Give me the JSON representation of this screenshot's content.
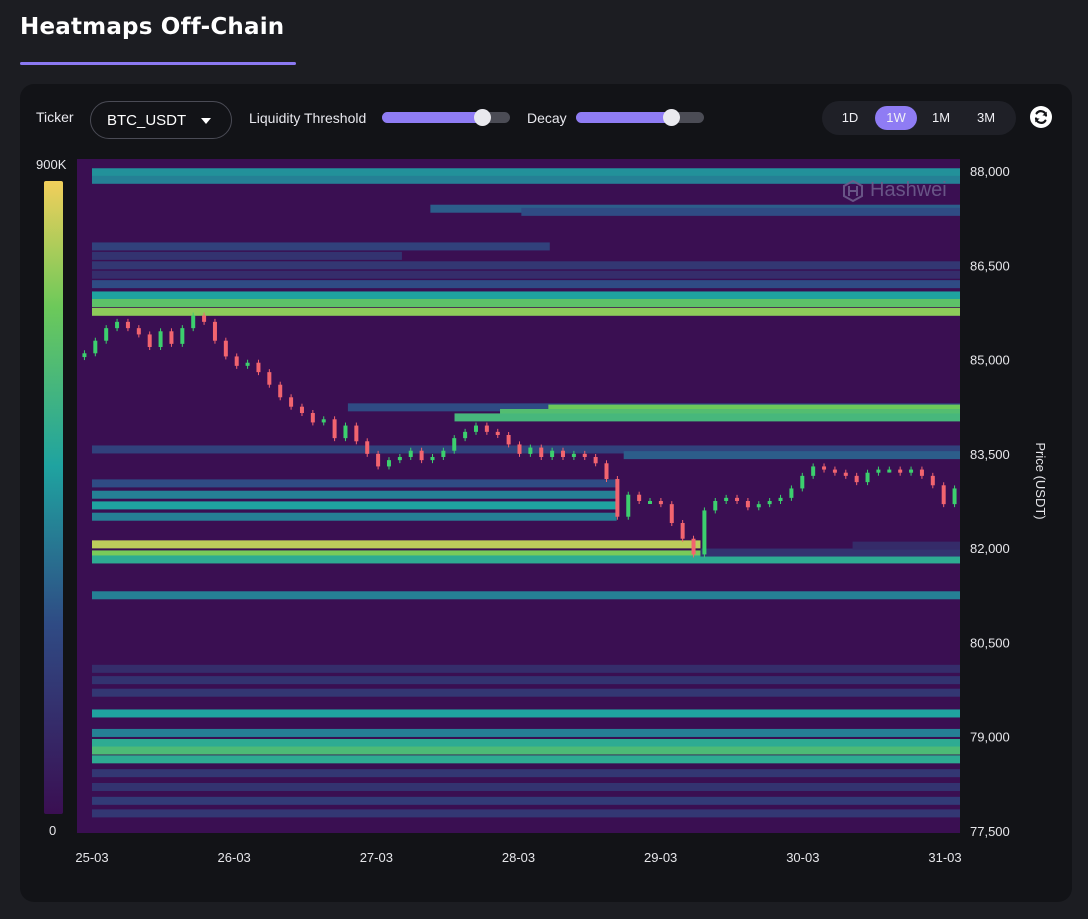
{
  "page": {
    "title": "Heatmaps Off-Chain"
  },
  "controls": {
    "ticker_label": "Ticker",
    "ticker_value": "BTC_USDT",
    "liquidity_label": "Liquidity Threshold",
    "liquidity_level": 0.78,
    "decay_label": "Decay",
    "decay_level": 0.74,
    "ranges": [
      "1D",
      "1W",
      "1M",
      "3M"
    ],
    "active_range": "1W"
  },
  "watermark": "Hashwei",
  "colors": {
    "background": "#1c1d22",
    "panel": "#121317",
    "accent": "#8f7cf4",
    "heat_base": "#3a0f52",
    "candle_up": "#3ccf6e",
    "candle_down": "#f2646f"
  },
  "chart_data": {
    "type": "heatmap",
    "ylabel": "Price (USDT)",
    "y_ticks": [
      "88,000",
      "86,500",
      "85,000",
      "83,500",
      "82,000",
      "80,500",
      "79,000",
      "77,500"
    ],
    "ylim": [
      77500,
      88000
    ],
    "x_ticks": [
      "25-03",
      "26-03",
      "27-03",
      "28-03",
      "29-03",
      "30-03",
      "31-03"
    ],
    "xlim_days": [
      0,
      6
    ],
    "colorbar": {
      "max_label": "900K",
      "min_label": "0"
    },
    "liquidity_bands": [
      {
        "price": 87980,
        "start": 0,
        "end": 6.23,
        "intensity": 0.5
      },
      {
        "price": 87860,
        "start": 0,
        "end": 6.23,
        "intensity": 0.45
      },
      {
        "price": 87400,
        "start": 2.38,
        "end": 6.23,
        "intensity": 0.35
      },
      {
        "price": 87350,
        "start": 3.02,
        "end": 6.23,
        "intensity": 0.3
      },
      {
        "price": 86800,
        "start": 0,
        "end": 3.22,
        "intensity": 0.25
      },
      {
        "price": 86650,
        "start": 0,
        "end": 2.18,
        "intensity": 0.18
      },
      {
        "price": 86500,
        "start": 0,
        "end": 6.23,
        "intensity": 0.2
      },
      {
        "price": 86350,
        "start": 0,
        "end": 6.23,
        "intensity": 0.15
      },
      {
        "price": 86200,
        "start": 0,
        "end": 6.23,
        "intensity": 0.3
      },
      {
        "price": 86020,
        "start": 0,
        "end": 6.23,
        "intensity": 0.55
      },
      {
        "price": 85900,
        "start": 0,
        "end": 6.23,
        "intensity": 0.75
      },
      {
        "price": 85760,
        "start": 0,
        "end": 6.23,
        "intensity": 0.85
      },
      {
        "price": 84240,
        "start": 1.8,
        "end": 6.23,
        "intensity": 0.3
      },
      {
        "price": 84220,
        "start": 3.21,
        "end": 6.23,
        "intensity": 0.8
      },
      {
        "price": 84150,
        "start": 2.87,
        "end": 6.23,
        "intensity": 0.72
      },
      {
        "price": 84080,
        "start": 2.55,
        "end": 6.23,
        "intensity": 0.68
      },
      {
        "price": 83570,
        "start": 0,
        "end": 6.23,
        "intensity": 0.25
      },
      {
        "price": 83480,
        "start": 3.74,
        "end": 6.23,
        "intensity": 0.35
      },
      {
        "price": 83030,
        "start": 0,
        "end": 3.69,
        "intensity": 0.3
      },
      {
        "price": 82850,
        "start": 0,
        "end": 3.69,
        "intensity": 0.45
      },
      {
        "price": 82680,
        "start": 0,
        "end": 3.69,
        "intensity": 0.55
      },
      {
        "price": 82500,
        "start": 0,
        "end": 3.69,
        "intensity": 0.45
      },
      {
        "price": 82060,
        "start": 0,
        "end": 4.28,
        "intensity": 0.92
      },
      {
        "price": 81900,
        "start": 0,
        "end": 4.28,
        "intensity": 0.82
      },
      {
        "price": 81820,
        "start": 0,
        "end": 6.23,
        "intensity": 0.6
      },
      {
        "price": 81930,
        "start": 4.28,
        "end": 6.23,
        "intensity": 0.18
      },
      {
        "price": 82040,
        "start": 5.35,
        "end": 6.23,
        "intensity": 0.14
      },
      {
        "price": 81250,
        "start": 0,
        "end": 6.23,
        "intensity": 0.45
      },
      {
        "price": 80080,
        "start": 0,
        "end": 6.23,
        "intensity": 0.15
      },
      {
        "price": 79900,
        "start": 0,
        "end": 6.23,
        "intensity": 0.18
      },
      {
        "price": 79700,
        "start": 0,
        "end": 6.23,
        "intensity": 0.2
      },
      {
        "price": 79370,
        "start": 0,
        "end": 6.23,
        "intensity": 0.55
      },
      {
        "price": 79060,
        "start": 0,
        "end": 6.23,
        "intensity": 0.45
      },
      {
        "price": 78900,
        "start": 0,
        "end": 6.23,
        "intensity": 0.6
      },
      {
        "price": 78780,
        "start": 0,
        "end": 6.23,
        "intensity": 0.7
      },
      {
        "price": 78640,
        "start": 0,
        "end": 6.23,
        "intensity": 0.6
      },
      {
        "price": 78420,
        "start": 0,
        "end": 6.23,
        "intensity": 0.2
      },
      {
        "price": 78200,
        "start": 0,
        "end": 6.23,
        "intensity": 0.18
      },
      {
        "price": 77980,
        "start": 0,
        "end": 6.23,
        "intensity": 0.22
      },
      {
        "price": 77780,
        "start": 0,
        "end": 6.23,
        "intensity": 0.2
      }
    ],
    "price_series": [
      85100,
      85300,
      85500,
      85600,
      85500,
      85400,
      85200,
      85450,
      85250,
      85500,
      85700,
      85600,
      85300,
      85050,
      84900,
      84950,
      84800,
      84600,
      84400,
      84250,
      84150,
      84000,
      84050,
      83750,
      83950,
      83700,
      83500,
      83300,
      83400,
      83450,
      83550,
      83400,
      83450,
      83550,
      83750,
      83850,
      83950,
      83850,
      83800,
      83650,
      83500,
      83600,
      83450,
      83550,
      83450,
      83500,
      83450,
      83350,
      83100,
      82500,
      82850,
      82750,
      82750,
      82700,
      82400,
      82150,
      81900,
      82600,
      82750,
      82800,
      82750,
      82650,
      82700,
      82750,
      82800,
      82950,
      83150,
      83300,
      83250,
      83200,
      83150,
      83050,
      83200,
      83250,
      83250,
      83200,
      83250,
      83150,
      83000,
      82700,
      82950
    ]
  }
}
